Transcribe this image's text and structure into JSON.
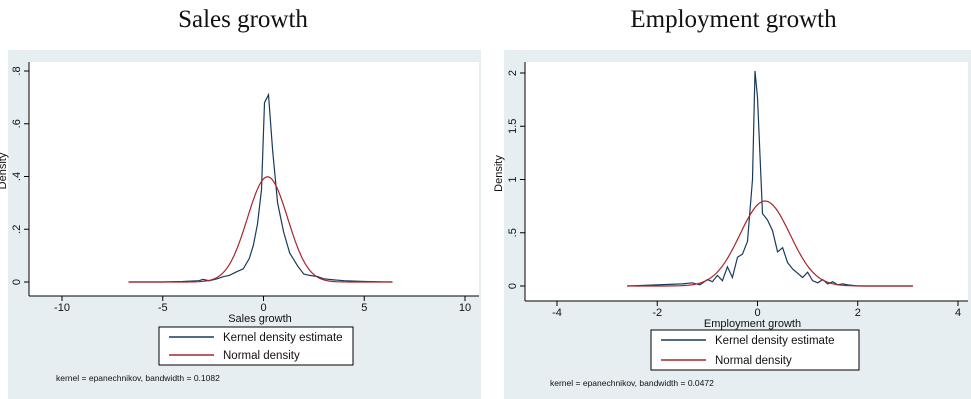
{
  "chart_data": [
    {
      "type": "line",
      "title": "Sales growth",
      "xlabel": "Sales growth",
      "ylabel": "Density",
      "xlim": [
        -10,
        10
      ],
      "ylim": [
        0,
        0.8
      ],
      "xticks": [
        -10,
        -5,
        0,
        5,
        10
      ],
      "xtick_labels": [
        "-10",
        "-5",
        "0",
        "5",
        "10"
      ],
      "yticks": [
        0,
        0.2,
        0.4,
        0.6,
        0.8
      ],
      "ytick_labels": [
        "0",
        ".2",
        ".4",
        ".6",
        ".8"
      ],
      "grid": false,
      "legend_position": "bottom",
      "note": "kernel = epanechnikov, bandwidth = 0.1082",
      "series": [
        {
          "name": "Kernel density estimate",
          "color": "#1a3a5c",
          "x": [
            -6.7,
            -5,
            -4,
            -3.2,
            -3,
            -2.7,
            -2.3,
            -2,
            -1.7,
            -1.3,
            -1,
            -0.7,
            -0.5,
            -0.3,
            -0.1,
            0.05,
            0.25,
            0.45,
            0.7,
            1,
            1.3,
            1.7,
            2,
            2.3,
            2.7,
            3,
            3.5,
            4,
            5,
            6.4
          ],
          "y": [
            0,
            0,
            0.002,
            0.005,
            0.01,
            0.005,
            0.012,
            0.02,
            0.025,
            0.04,
            0.05,
            0.09,
            0.14,
            0.22,
            0.35,
            0.68,
            0.71,
            0.5,
            0.3,
            0.19,
            0.11,
            0.06,
            0.03,
            0.025,
            0.02,
            0.012,
            0.008,
            0.005,
            0.002,
            0
          ]
        },
        {
          "name": "Normal density",
          "color": "#a8262a",
          "mean": 0.2,
          "sd": 1.0,
          "xrange": [
            -6.7,
            6.4
          ]
        }
      ]
    },
    {
      "type": "line",
      "title": "Employment growth",
      "xlabel": "Employment growth",
      "ylabel": "Density",
      "xlim": [
        -4,
        4
      ],
      "ylim": [
        0,
        2
      ],
      "xticks": [
        -4,
        -2,
        0,
        2,
        4
      ],
      "xtick_labels": [
        "-4",
        "-2",
        "0",
        "2",
        "4"
      ],
      "yticks": [
        0,
        0.5,
        1,
        1.5,
        2
      ],
      "ytick_labels": [
        "0",
        ".5",
        "1",
        "1.5",
        "2"
      ],
      "grid": false,
      "legend_position": "bottom",
      "note": "kernel = epanechnikov, bandwidth = 0.0472",
      "series": [
        {
          "name": "Kernel density estimate",
          "color": "#1a3a5c",
          "x": [
            -2.6,
            -2,
            -1.5,
            -1.3,
            -1.15,
            -1,
            -0.9,
            -0.8,
            -0.7,
            -0.6,
            -0.5,
            -0.4,
            -0.3,
            -0.2,
            -0.1,
            -0.05,
            0,
            0.1,
            0.2,
            0.3,
            0.4,
            0.5,
            0.6,
            0.7,
            0.8,
            0.9,
            1,
            1.1,
            1.2,
            1.3,
            1.4,
            1.5,
            1.6,
            1.7,
            1.8,
            2,
            2.5,
            3.1
          ],
          "y": [
            0,
            0.01,
            0.02,
            0.03,
            0.01,
            0.06,
            0.04,
            0.1,
            0.05,
            0.18,
            0.08,
            0.27,
            0.3,
            0.42,
            1.0,
            2.02,
            1.77,
            0.68,
            0.62,
            0.52,
            0.32,
            0.36,
            0.22,
            0.16,
            0.12,
            0.08,
            0.13,
            0.05,
            0.03,
            0.06,
            0.02,
            0.04,
            0.01,
            0.02,
            0.01,
            0,
            0,
            0
          ]
        },
        {
          "name": "Normal density",
          "color": "#a8262a",
          "mean": 0.15,
          "sd": 0.5,
          "xrange": [
            -2.6,
            3.1
          ]
        }
      ]
    }
  ]
}
